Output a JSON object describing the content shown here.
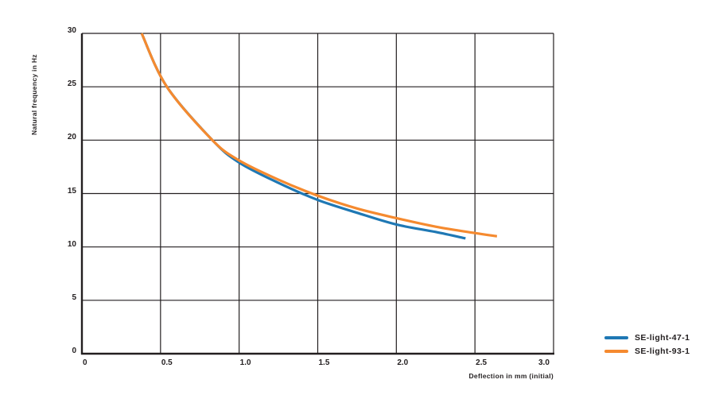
{
  "chart_data": {
    "type": "line",
    "title": "",
    "xlabel": "Deflection in mm (initial)",
    "ylabel": "Natural frequency in Hz",
    "xlim": [
      0,
      3.0
    ],
    "ylim": [
      0,
      30
    ],
    "x_ticks": [
      "0",
      "0.5",
      "1.0",
      "1.5",
      "2.0",
      "2.5",
      "3.0"
    ],
    "y_ticks": [
      "0",
      "5",
      "10",
      "15",
      "20",
      "25",
      "30"
    ],
    "grid": true,
    "legend_position": "bottom-right, outside plot",
    "series": [
      {
        "name": "SE-light-47-1",
        "color": "#1f78b4",
        "points": [
          [
            0.38,
            30.0
          ],
          [
            0.54,
            25.0
          ],
          [
            0.83,
            20.0
          ],
          [
            1.0,
            17.9
          ],
          [
            1.25,
            16.0
          ],
          [
            1.5,
            14.4
          ],
          [
            1.75,
            13.2
          ],
          [
            2.0,
            12.1
          ],
          [
            2.25,
            11.4
          ],
          [
            2.44,
            10.8
          ]
        ]
      },
      {
        "name": "SE-light-93-1",
        "color": "#f58a2f",
        "points": [
          [
            0.38,
            30.0
          ],
          [
            0.54,
            25.0
          ],
          [
            0.83,
            20.0
          ],
          [
            1.0,
            18.1
          ],
          [
            1.25,
            16.3
          ],
          [
            1.5,
            14.8
          ],
          [
            1.75,
            13.6
          ],
          [
            2.0,
            12.7
          ],
          [
            2.25,
            11.9
          ],
          [
            2.5,
            11.3
          ],
          [
            2.64,
            11.0
          ]
        ]
      }
    ]
  }
}
